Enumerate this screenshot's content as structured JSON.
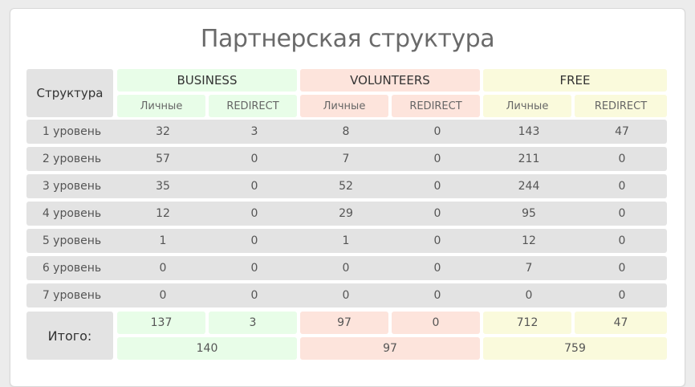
{
  "title": "Партнерская структура",
  "header": {
    "structure_label": "Структура",
    "groups": [
      "BUSINESS",
      "VOLUNTEERS",
      "FREE"
    ],
    "sub_personal": "Личные",
    "sub_redirect": "REDIRECT"
  },
  "rows": [
    {
      "level": "1 уровень",
      "values": [
        "32",
        "3",
        "8",
        "0",
        "143",
        "47"
      ]
    },
    {
      "level": "2 уровень",
      "values": [
        "57",
        "0",
        "7",
        "0",
        "211",
        "0"
      ]
    },
    {
      "level": "3 уровень",
      "values": [
        "35",
        "0",
        "52",
        "0",
        "244",
        "0"
      ]
    },
    {
      "level": "4 уровень",
      "values": [
        "12",
        "0",
        "29",
        "0",
        "95",
        "0"
      ]
    },
    {
      "level": "5 уровень",
      "values": [
        "1",
        "0",
        "1",
        "0",
        "12",
        "0"
      ]
    },
    {
      "level": "6 уровень",
      "values": [
        "0",
        "0",
        "0",
        "0",
        "7",
        "0"
      ]
    },
    {
      "level": "7 уровень",
      "values": [
        "0",
        "0",
        "0",
        "0",
        "0",
        "0"
      ]
    }
  ],
  "totals": {
    "label": "Итого:",
    "values": [
      "137",
      "3",
      "97",
      "0",
      "712",
      "47"
    ],
    "group_totals": [
      "140",
      "97",
      "759"
    ]
  },
  "colors": {
    "business": "#e8fde8",
    "volunteers": "#fde4dc",
    "free": "#fafadc",
    "grey": "#e3e3e3"
  }
}
